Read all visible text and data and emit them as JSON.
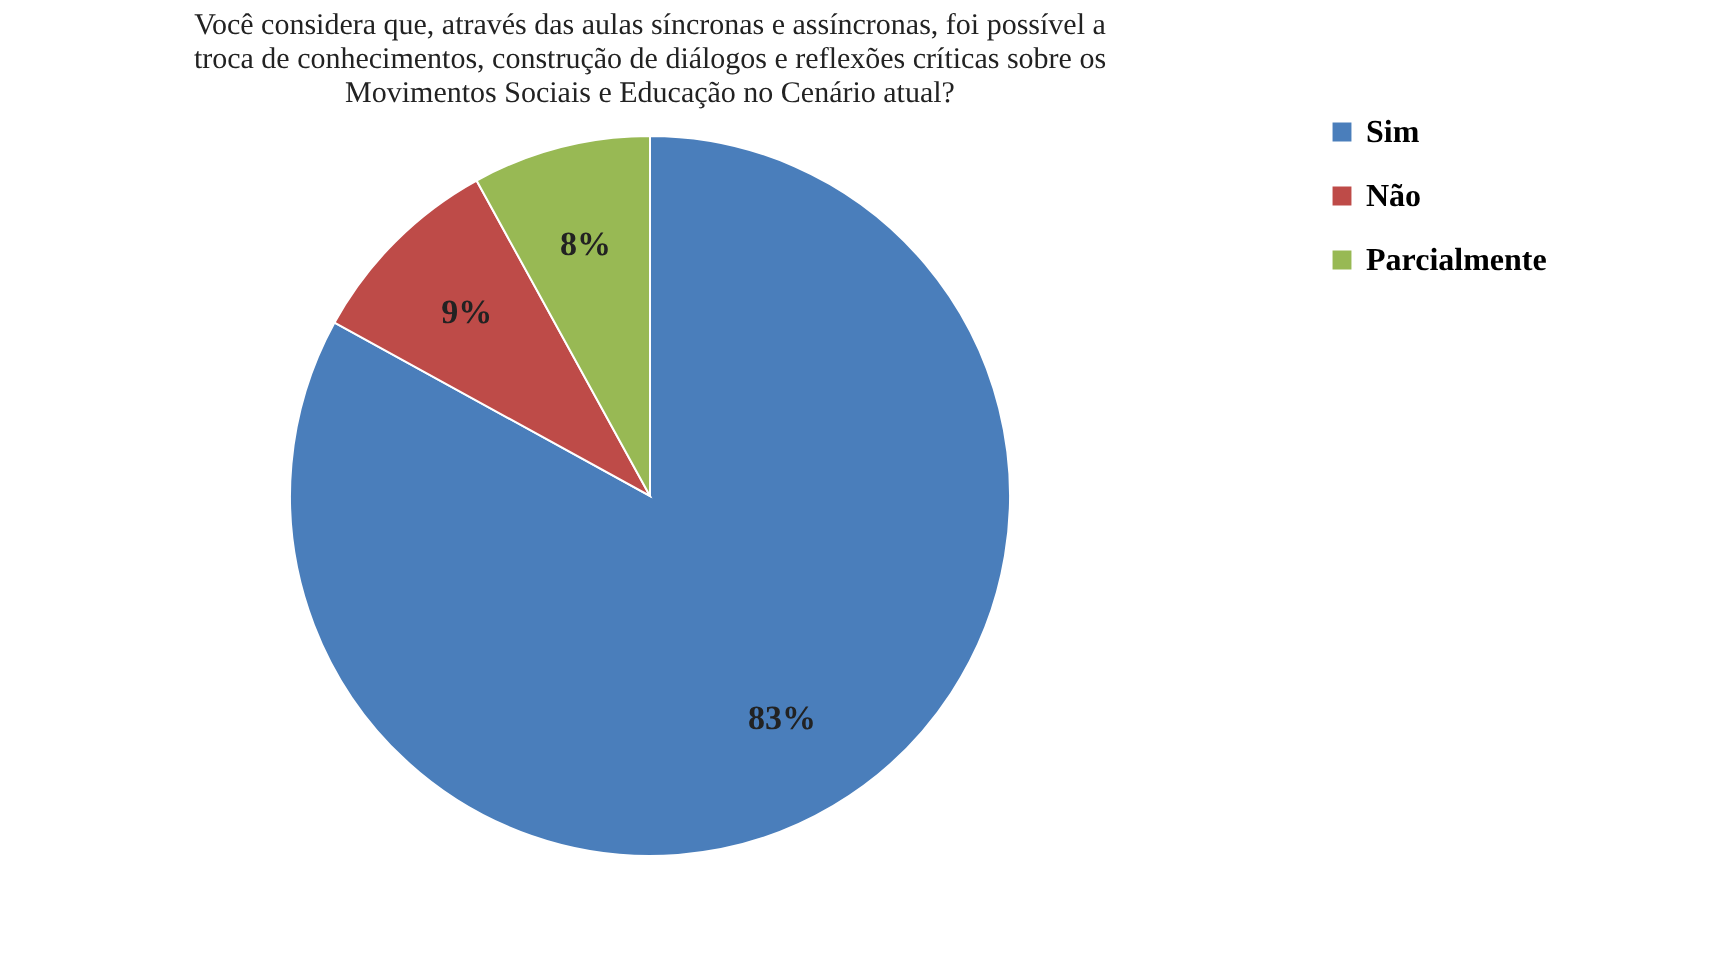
{
  "chart_data": {
    "type": "pie",
    "title": [
      "Você considera que, através das aulas síncronas e assíncronas, foi possível a",
      "troca de conhecimentos, construção de diálogos e reflexões críticas sobre os",
      "Movimentos Sociais e Educação no Cenário atual?"
    ],
    "categories": [
      "Sim",
      "Não",
      "Parcialmente"
    ],
    "values": [
      83,
      9,
      8
    ],
    "colors": [
      "#4a7ebb",
      "#be4b48",
      "#98b954"
    ],
    "value_labels": [
      "83%",
      "9%",
      "8%"
    ],
    "legend": "right"
  }
}
